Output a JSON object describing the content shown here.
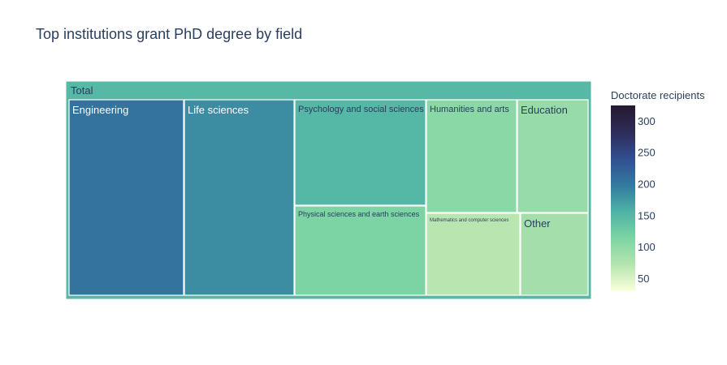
{
  "chart_data": {
    "type": "treemap",
    "title": "Top institutions grant PhD degree by field",
    "root": {
      "label": "Total",
      "value": 149
    },
    "items": [
      {
        "label": "Engineering",
        "value": 205
      },
      {
        "label": "Life sciences",
        "value": 185
      },
      {
        "label": "Psychology and social sciences",
        "value": 150
      },
      {
        "label": "Physical sciences and earth sciences",
        "value": 115
      },
      {
        "label": "Humanities and arts",
        "value": 105
      },
      {
        "label": "Mathematics and computer sciences",
        "value": 70
      },
      {
        "label": "Education",
        "value": 95
      },
      {
        "label": "Other",
        "value": 85
      }
    ],
    "colorbar": {
      "title": "Doctorate recipients",
      "min": 30,
      "max": 325,
      "ticks": [
        50,
        100,
        150,
        200,
        250,
        300
      ],
      "tick_labels": [
        "50",
        "100",
        "150",
        "200",
        "250",
        "300"
      ]
    }
  },
  "colors": {
    "scale": [
      "#fcffdd",
      "#b5e4ae",
      "#7dd4a3",
      "#4eb2a6",
      "#337aa0",
      "#324e90",
      "#2e2c59",
      "#25192f"
    ],
    "tile_border": "#ffffff",
    "text_dark": "#2a3f5f",
    "text_light": "#ffffff"
  }
}
